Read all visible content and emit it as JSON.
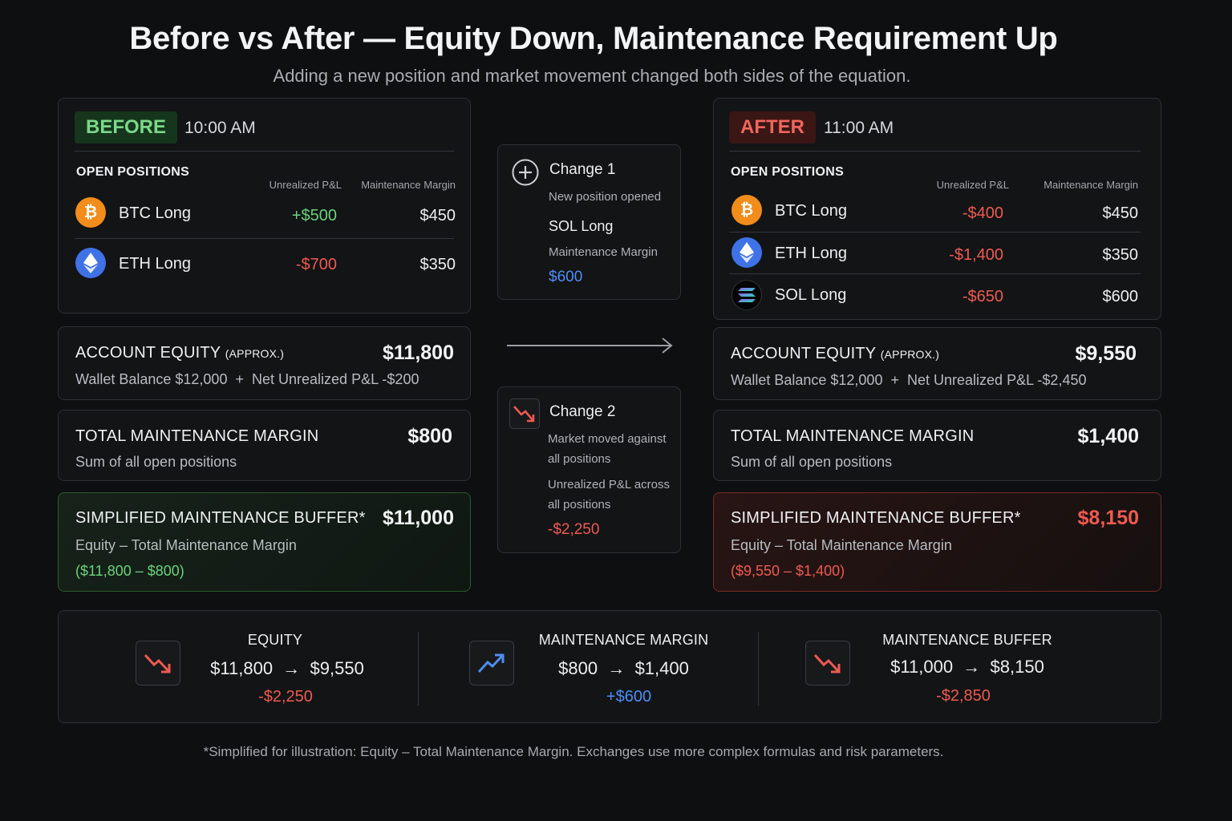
{
  "title": "Before vs After — Equity Down, Maintenance Requirement Up",
  "subtitle": "Adding a new position and market movement changed both sides of the equation.",
  "colors": {
    "green": "#6cd27b",
    "red": "#ee5a50",
    "blue": "#4f8df5"
  },
  "before": {
    "tag": "BEFORE",
    "time": "10:00 AM",
    "section": "OPEN POSITIONS",
    "col_pnl": "Unrealized P&L",
    "col_margin": "Maintenance Margin",
    "positions": [
      {
        "icon": "bitcoin-icon",
        "name": "BTC Long",
        "pnl": "+$500",
        "margin": "$450"
      },
      {
        "icon": "ethereum-icon",
        "name": "ETH Long",
        "pnl": "-$700",
        "margin": "$350"
      }
    ],
    "equity": {
      "label": "ACCOUNT EQUITY",
      "approx": "(APPROX.)",
      "value": "$11,800",
      "wallet": "Wallet Balance $12,000",
      "plus": "+",
      "net": "Net Unrealized P&L -$200"
    },
    "total_margin": {
      "label": "TOTAL MAINTENANCE MARGIN",
      "value": "$800",
      "sub": "Sum of all open positions"
    },
    "buffer": {
      "label": "SIMPLIFIED MAINTENANCE BUFFER*",
      "value": "$11,000",
      "formula": "Equity – Total Maintenance Margin",
      "calc": "($11,800 – $800)"
    }
  },
  "changes": [
    {
      "icon": "plus-circle-icon",
      "title": "Change 1",
      "sub": "New position opened",
      "name": "SOL Long",
      "label": "Maintenance Margin",
      "value": "$600"
    },
    {
      "icon": "trend-down-icon",
      "title": "Change 2",
      "sub1": "Market moved against",
      "sub2": "all positions",
      "label1": "Unrealized P&L across",
      "label2": "all positions",
      "value": "-$2,250"
    }
  ],
  "after": {
    "tag": "AFTER",
    "time": "11:00 AM",
    "section": "OPEN POSITIONS",
    "col_pnl": "Unrealized P&L",
    "col_margin": "Maintenance Margin",
    "positions": [
      {
        "icon": "bitcoin-icon",
        "name": "BTC Long",
        "pnl": "-$400",
        "margin": "$450"
      },
      {
        "icon": "ethereum-icon",
        "name": "ETH Long",
        "pnl": "-$1,400",
        "margin": "$350"
      },
      {
        "icon": "solana-icon",
        "name": "SOL Long",
        "pnl": "-$650",
        "margin": "$600"
      }
    ],
    "equity": {
      "label": "ACCOUNT EQUITY",
      "approx": "(APPROX.)",
      "value": "$9,550",
      "wallet": "Wallet Balance $12,000",
      "plus": "+",
      "net": "Net Unrealized P&L -$2,450"
    },
    "total_margin": {
      "label": "TOTAL MAINTENANCE MARGIN",
      "value": "$1,400",
      "sub": "Sum of all open positions"
    },
    "buffer": {
      "label": "SIMPLIFIED MAINTENANCE BUFFER*",
      "value": "$8,150",
      "formula": "Equity – Total Maintenance Margin",
      "calc": "($9,550 – $1,400)"
    }
  },
  "summary": [
    {
      "icon": "trend-down-icon",
      "label": "EQUITY",
      "from": "$11,800",
      "to": "$9,550",
      "delta": "-$2,250"
    },
    {
      "icon": "trend-up-icon",
      "label": "MAINTENANCE MARGIN",
      "from": "$800",
      "to": "$1,400",
      "delta": "+$600"
    },
    {
      "icon": "trend-down-icon",
      "label": "MAINTENANCE BUFFER",
      "from": "$11,000",
      "to": "$8,150",
      "delta": "-$2,850"
    }
  ],
  "arrow": "→",
  "footnote": "*Simplified for illustration: Equity – Total Maintenance Margin. Exchanges use more complex formulas and risk parameters."
}
